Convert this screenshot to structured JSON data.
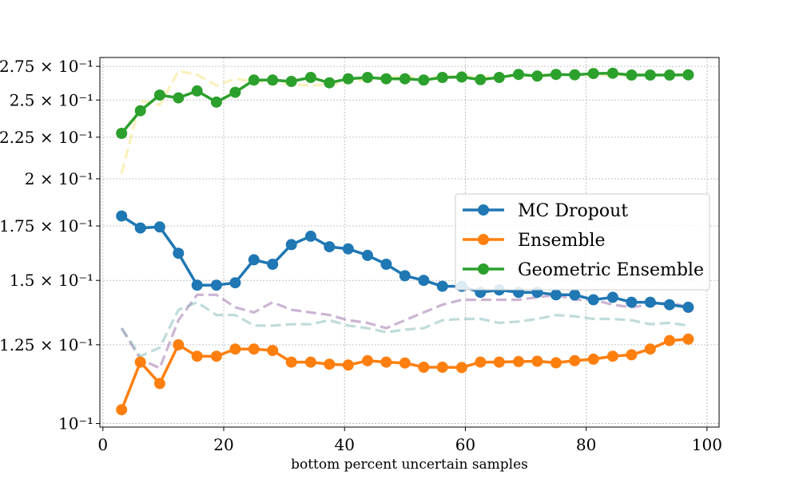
{
  "chart_data": {
    "type": "line",
    "title": "",
    "xlabel": "bottom percent uncertain samples",
    "ylabel": "",
    "xlim": [
      -0.5,
      102
    ],
    "ylim": [
      0.099,
      0.282
    ],
    "yscale": "log",
    "grid": true,
    "legend_position": "center-right",
    "x_ticks": [
      0,
      20,
      40,
      60,
      80,
      100
    ],
    "y_ticks": [
      {
        "value": 0.1,
        "label": "10⁻¹"
      },
      {
        "value": 0.125,
        "label": "1.25 × 10⁻¹"
      },
      {
        "value": 0.15,
        "label": "1.5 × 10⁻¹"
      },
      {
        "value": 0.175,
        "label": "1.75 × 10⁻¹"
      },
      {
        "value": 0.2,
        "label": "2 × 10⁻¹"
      },
      {
        "value": 0.225,
        "label": "2.25 × 10⁻¹"
      },
      {
        "value": 0.25,
        "label": "2.5 × 10⁻¹"
      },
      {
        "value": 0.275,
        "label": "2.75 × 10⁻¹"
      }
    ],
    "x": [
      3.1,
      6.2,
      9.4,
      12.5,
      15.6,
      18.8,
      21.9,
      25.0,
      28.1,
      31.2,
      34.4,
      37.5,
      40.6,
      43.8,
      46.9,
      50.0,
      53.1,
      56.2,
      59.4,
      62.5,
      65.6,
      68.8,
      71.9,
      75.0,
      78.1,
      81.2,
      84.4,
      87.5,
      90.6,
      93.8,
      96.9
    ],
    "series": [
      {
        "name": "MC Dropout",
        "color": "#1f77b4",
        "style": "solid-markers",
        "values": [
          0.18,
          0.174,
          0.1745,
          0.162,
          0.148,
          0.148,
          0.149,
          0.159,
          0.157,
          0.166,
          0.17,
          0.165,
          0.164,
          0.161,
          0.157,
          0.152,
          0.15,
          0.1475,
          0.1475,
          0.145,
          0.146,
          0.145,
          0.145,
          0.144,
          0.144,
          0.142,
          0.143,
          0.141,
          0.141,
          0.14,
          0.139
        ]
      },
      {
        "name": "Ensemble",
        "color": "#ff7f0e",
        "style": "solid-markers",
        "values": [
          0.104,
          0.119,
          0.112,
          0.125,
          0.121,
          0.121,
          0.1235,
          0.1235,
          0.123,
          0.119,
          0.119,
          0.1183,
          0.118,
          0.1195,
          0.119,
          0.1187,
          0.1173,
          0.1173,
          0.1172,
          0.119,
          0.119,
          0.1192,
          0.1193,
          0.1188,
          0.1195,
          0.12,
          0.121,
          0.1215,
          0.1235,
          0.1265,
          0.127
        ]
      },
      {
        "name": "Geometric Ensemble",
        "color": "#2ca02c",
        "style": "solid-markers",
        "values": [
          0.2275,
          0.2425,
          0.2535,
          0.2515,
          0.2565,
          0.2485,
          0.2555,
          0.2645,
          0.2645,
          0.2635,
          0.2665,
          0.2625,
          0.2655,
          0.2665,
          0.2655,
          0.2655,
          0.2645,
          0.2665,
          0.2668,
          0.2648,
          0.2665,
          0.2688,
          0.2675,
          0.2688,
          0.2685,
          0.2695,
          0.2697,
          0.2683,
          0.2683,
          0.2683,
          0.2685
        ]
      },
      {
        "color": "#f5e37a",
        "style": "dashed",
        "values": [
          0.203,
          0.2495,
          0.2465,
          0.2715,
          0.2685,
          0.2605,
          0.2655,
          0.2635,
          0.2625,
          0.2615,
          0.2605,
          0.2615,
          0.2625,
          0.2655,
          0.2665,
          0.2675,
          0.2665,
          0.2675,
          0.2675,
          0.2665,
          0.2675,
          0.2675,
          0.2683,
          0.2685,
          0.2685,
          0.2683,
          0.2683,
          0.2683,
          0.2683,
          0.2683,
          0.2683
        ]
      },
      {
        "color": "#9a6aa8",
        "style": "dashed",
        "values": [
          0.131,
          0.12,
          0.117,
          0.134,
          0.144,
          0.144,
          0.139,
          0.137,
          0.141,
          0.138,
          0.137,
          0.136,
          0.134,
          0.133,
          0.131,
          0.134,
          0.137,
          0.14,
          0.142,
          0.142,
          0.142,
          0.142,
          0.143,
          0.144,
          0.142,
          0.142,
          0.14,
          0.139,
          0.14,
          0.141,
          0.139
        ]
      },
      {
        "color": "#7fb8b8",
        "style": "dashed",
        "values": [
          0.131,
          0.121,
          0.124,
          0.138,
          0.141,
          0.136,
          0.136,
          0.132,
          0.132,
          0.1325,
          0.1325,
          0.134,
          0.132,
          0.131,
          0.1295,
          0.1305,
          0.131,
          0.134,
          0.1345,
          0.1345,
          0.133,
          0.1335,
          0.1345,
          0.136,
          0.1355,
          0.1345,
          0.1345,
          0.134,
          0.1325,
          0.133,
          0.132
        ]
      }
    ]
  }
}
